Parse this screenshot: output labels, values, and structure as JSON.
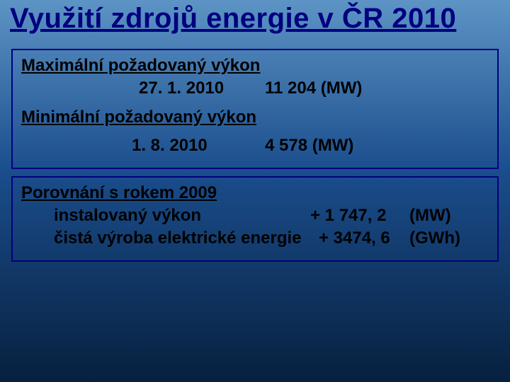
{
  "title": "Využití zdrojů energie v ČR 2010",
  "box1": {
    "max_label": "Maximální požadovaný výkon",
    "max_date": "27. 1. 2010",
    "max_value": "11 204 (MW)",
    "min_label": "Minimální požadovaný výkon",
    "min_date": "1. 8. 2010",
    "min_value": "4 578 (MW)"
  },
  "box2": {
    "cmp_label": "Porovnání s rokem 2009",
    "inst_label": "instalovaný výkon",
    "inst_value": "+ 1 747, 2",
    "inst_unit": "(MW)",
    "net_label": "čistá výroba elektrické energie",
    "net_value": "+ 3474, 6",
    "net_unit": "(GWh)"
  },
  "colors": {
    "title_color": "#000080",
    "border_color": "#000080",
    "text_color": "#000000",
    "bg_top": "#5d94c5",
    "bg_mid": "#1a4d8c",
    "bg_bottom": "#07203e"
  }
}
